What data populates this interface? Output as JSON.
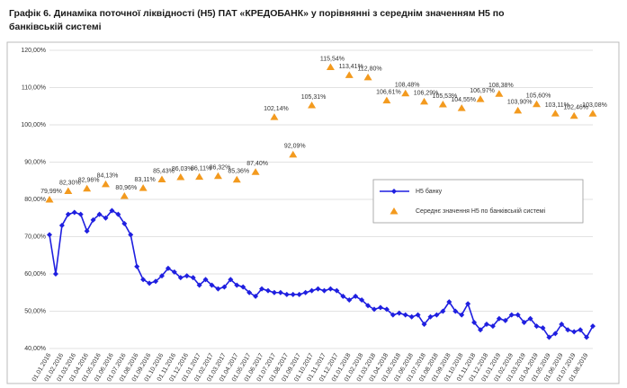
{
  "chart_data": {
    "type": "line",
    "title": "Графік 6.  Динаміка поточної ліквідності (Н5) ПАТ «КРЕДОБАНК» у порівнянні з середнім значенням Н5 по банківській системі",
    "categories": [
      "01.01.2016",
      null,
      "01.02.2016",
      null,
      "01.03.2016",
      null,
      "01.04.2016",
      null,
      "01.05.2016",
      null,
      "01.06.2016",
      null,
      "01.07.2016",
      null,
      "01.08.2016",
      null,
      "01.09.2016",
      null,
      "01.10.2016",
      null,
      "01.11.2016",
      null,
      "01.12.2016",
      null,
      "01.01.2017",
      null,
      "01.02.2017",
      null,
      "01.03.2017",
      null,
      "01.04.2017",
      null,
      "01.05.2017",
      null,
      "01.06.2017",
      null,
      "01.07.2017",
      null,
      "01.08.2017",
      null,
      "01.09.2017",
      null,
      "01.10.2017",
      null,
      "01.11.2017",
      null,
      "01.12.2017",
      null,
      "01.01.2018",
      null,
      "01.02.2018",
      null,
      "01.03.2018",
      null,
      "01.04.2018",
      null,
      "01.05.2018",
      null,
      "01.06.2018",
      null,
      "01.07.2018",
      null,
      "01.08.2018",
      null,
      "01.09.2018",
      null,
      "01.10.2018",
      null,
      "01.11.2018",
      null,
      "01.12.2018",
      null,
      "01.01.2019",
      null,
      "01.02.2019",
      null,
      "01.03.2019",
      null,
      "01.04.2019",
      null,
      "01.05.2019",
      null,
      "01.06.2019",
      null,
      "01.07.2019",
      null,
      "01.08.2019",
      null
    ],
    "series": [
      {
        "name": "Н5 банку",
        "color": "#1f1fe0",
        "marker": "diamond",
        "values": [
          70.5,
          60,
          73,
          76,
          76.5,
          76,
          71.5,
          74.5,
          76,
          75,
          77,
          76,
          73.5,
          70.5,
          62,
          58.5,
          57.5,
          58,
          59.5,
          61.5,
          60.5,
          59,
          59.5,
          59,
          57,
          58.5,
          57,
          56,
          56.5,
          58.5,
          57,
          56.5,
          55,
          54,
          56,
          55.5,
          55,
          55,
          54.5,
          54.5,
          54.5,
          55,
          55.5,
          56,
          55.5,
          56,
          55.5,
          54,
          53,
          54,
          53,
          51.5,
          50.5,
          51,
          50.5,
          49,
          49.5,
          49,
          48.5,
          49,
          46.5,
          48.5,
          49,
          50,
          52.5,
          50,
          49,
          52,
          47,
          45,
          46.5,
          46,
          48,
          47.5,
          49,
          49,
          47,
          48,
          46,
          45.5,
          43,
          44,
          46.5,
          45,
          44.5,
          45,
          43,
          46
        ]
      },
      {
        "name": "Середнє значення Н5 по банківській системі",
        "color": "#f39a1e",
        "marker": "triangle",
        "values": [
          79.99,
          null,
          null,
          82.3,
          null,
          null,
          82.96,
          null,
          null,
          84.13,
          null,
          null,
          80.96,
          null,
          null,
          83.11,
          null,
          null,
          85.43,
          null,
          null,
          86.03,
          null,
          null,
          86.11,
          null,
          null,
          86.32,
          null,
          null,
          85.36,
          null,
          null,
          87.4,
          null,
          null,
          102.14,
          null,
          null,
          92.09,
          null,
          null,
          105.31,
          null,
          null,
          115.54,
          null,
          null,
          113.41,
          null,
          null,
          112.8,
          null,
          null,
          106.61,
          null,
          null,
          108.48,
          null,
          null,
          106.29,
          null,
          null,
          105.53,
          null,
          null,
          104.55,
          null,
          null,
          106.97,
          null,
          null,
          108.38,
          null,
          null,
          103.9,
          null,
          null,
          105.6,
          null,
          null,
          103.11,
          null,
          null,
          102.46,
          null,
          null,
          103.08
        ],
        "value_labels": [
          "79,99%",
          null,
          null,
          "82,30%",
          null,
          null,
          "82,96%",
          null,
          null,
          "84,13%",
          null,
          null,
          "80,96%",
          null,
          null,
          "83,11%",
          null,
          null,
          "85,43%",
          null,
          null,
          "86,03%",
          null,
          null,
          "86,11%",
          null,
          null,
          "86,32%",
          null,
          null,
          "85,36%",
          null,
          null,
          "87,40%",
          null,
          null,
          "102,14%",
          null,
          null,
          "92,09%",
          null,
          null,
          "105,31%",
          null,
          null,
          "115,54%",
          null,
          null,
          "113,41%",
          null,
          null,
          "112,80%",
          null,
          null,
          "106,61%",
          null,
          null,
          "108,48%",
          null,
          null,
          "106,29%",
          null,
          null,
          "105,53%",
          null,
          null,
          "104,55%",
          null,
          null,
          "106,97%",
          null,
          null,
          "108,38%",
          null,
          null,
          "103,90%",
          null,
          null,
          "105,60%",
          null,
          null,
          "103,11%",
          null,
          null,
          "102,46%",
          null,
          null,
          "103,08%"
        ]
      }
    ],
    "ylim": [
      40,
      120
    ],
    "yticks": [
      {
        "value": 40,
        "label": "40,00%"
      },
      {
        "value": 50,
        "label": "50,00%"
      },
      {
        "value": 60,
        "label": "60,00%"
      },
      {
        "value": 70,
        "label": "70,00%"
      },
      {
        "value": 80,
        "label": "80,00%"
      },
      {
        "value": 90,
        "label": "90,00%"
      },
      {
        "value": 100,
        "label": "100,00%"
      },
      {
        "value": 110,
        "label": "110,00%"
      },
      {
        "value": 120,
        "label": "120,00%"
      }
    ],
    "grid": true
  }
}
